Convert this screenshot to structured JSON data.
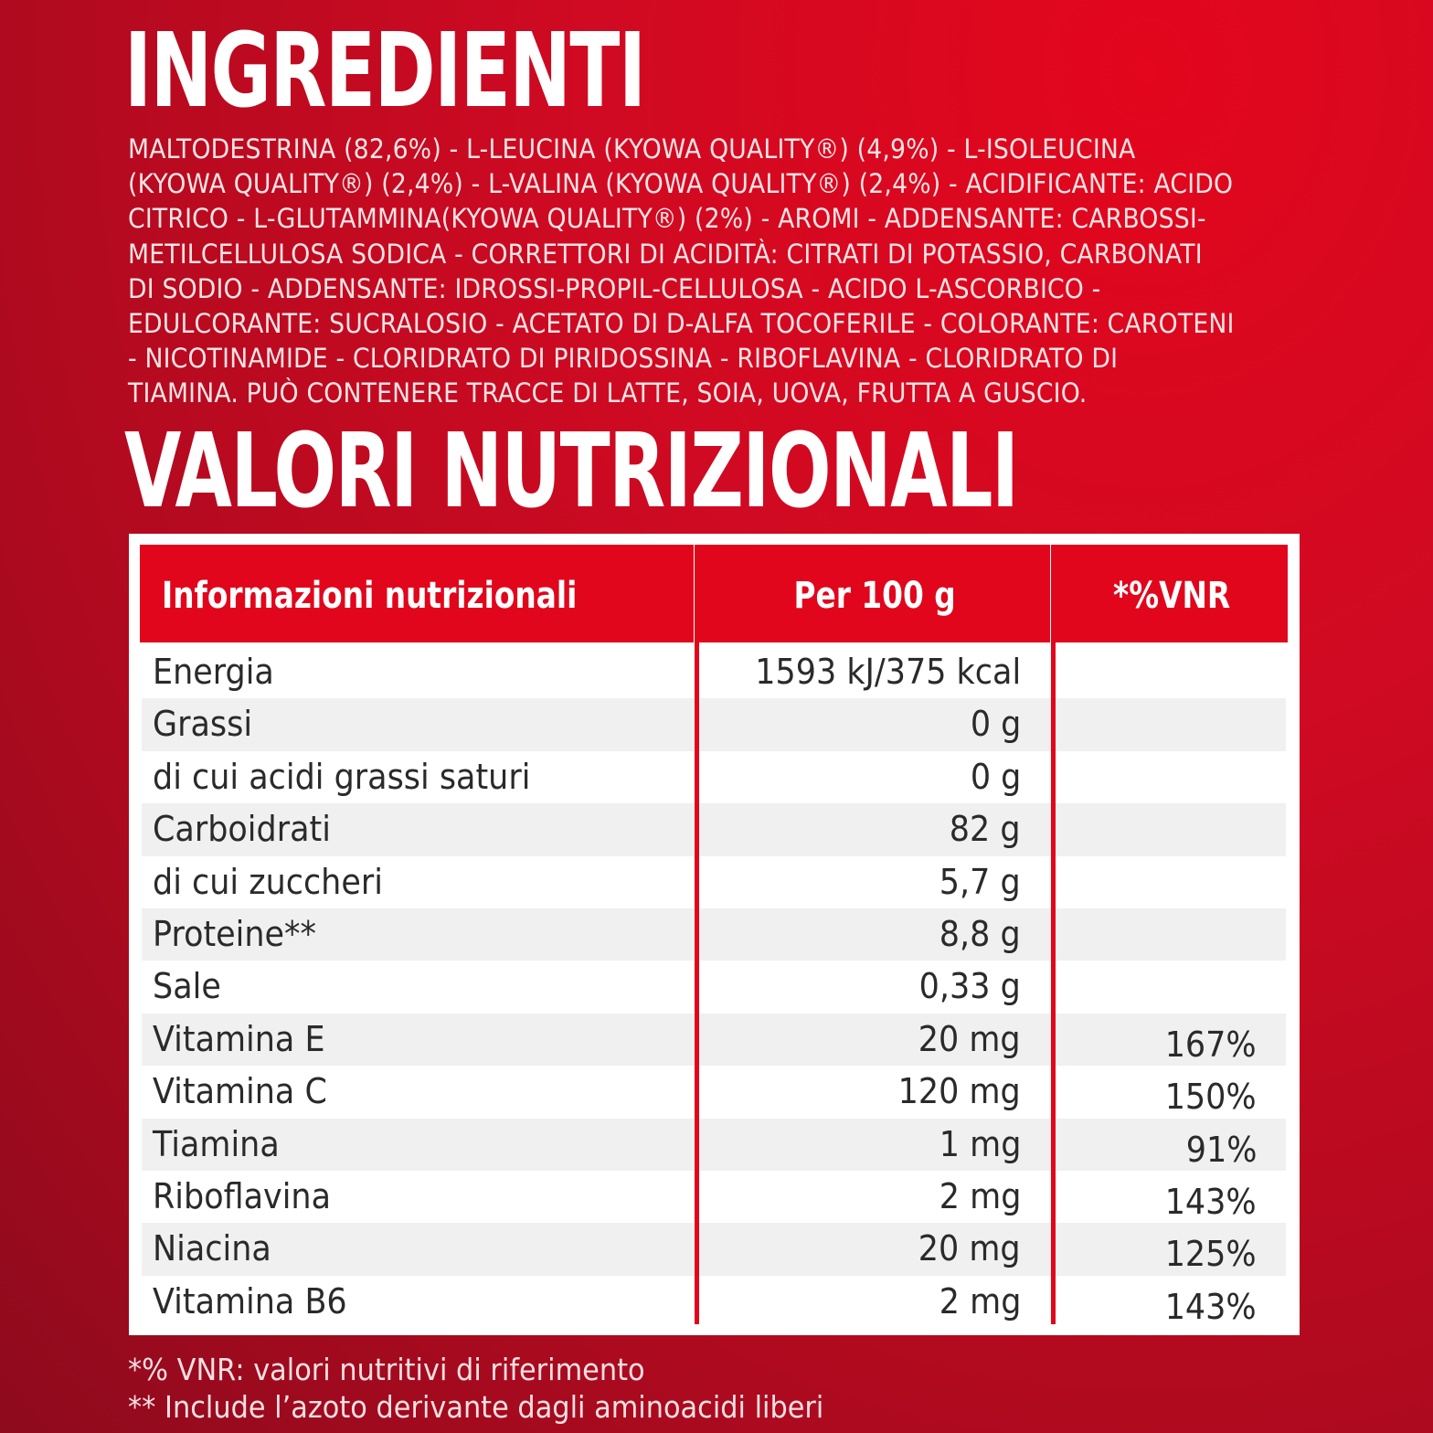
{
  "ingredients_title": "INGREDIENTI",
  "ingredients_lines": [
    "MALTODESTRINA (82,6%) - L-LEUCINA (KYOWA QUALITY®) (4,9%) - L-ISOLEUCINA",
    "(KYOWA QUALITY®) (2,4%) - L-VALINA (KYOWA QUALITY®) (2,4%) - ACIDIFICANTE: ACIDO",
    "CITRICO - L-GLUTAMMINA(KYOWA QUALITY®) (2%) - AROMI - ADDENSANTE: CARBOSSI-",
    "METILCELLULOSA SODICA - CORRETTORI DI ACIDITÀ: CITRATI DI POTASSIO, CARBONATI",
    "DI SODIO - ADDENSANTE: IDROSSI-PROPIL-CELLULOSA - ACIDO L-ASCORBICO -",
    "EDULCORANTE: SUCRALOSIO - ACETATO DI D-ALFA TOCOFERILE - COLORANTE: CAROTENI",
    "- NICOTINAMIDE - CLORIDRATO DI PIRIDOSSINA - RIBOFLAVINA - CLORIDRATO DI",
    "TIAMINA. PUÒ CONTENERE TRACCE DI LATTE, SOIA, UOVA, FRUTTA A GUSCIO."
  ],
  "nutrition_title": "VALORI NUTRIZIONALI",
  "table": {
    "headers": [
      "Informazioni nutrizionali",
      "Per 100 g",
      "*%VNR"
    ],
    "rows": [
      {
        "name": "Energia",
        "value": "1593 kJ/375 kcal",
        "vnr": ""
      },
      {
        "name": "Grassi",
        "value": "0 g",
        "vnr": ""
      },
      {
        "name": "di cui acidi grassi saturi",
        "value": "0 g",
        "vnr": ""
      },
      {
        "name": "Carboidrati",
        "value": "82 g",
        "vnr": ""
      },
      {
        "name": "di cui zuccheri",
        "value": "5,7 g",
        "vnr": ""
      },
      {
        "name": "Proteine**",
        "value": "8,8 g",
        "vnr": ""
      },
      {
        "name": "Sale",
        "value": "0,33 g",
        "vnr": ""
      },
      {
        "name": "Vitamina E",
        "value": "20 mg",
        "vnr": "167%"
      },
      {
        "name": "Vitamina C",
        "value": "120 mg",
        "vnr": "150%"
      },
      {
        "name": "Tiamina",
        "value": "1 mg",
        "vnr": "91%"
      },
      {
        "name": "Riboflavina",
        "value": "2 mg",
        "vnr": "143%"
      },
      {
        "name": "Niacina",
        "value": "20 mg",
        "vnr": "125%"
      },
      {
        "name": "Vitamina B6",
        "value": "2 mg",
        "vnr": "143%"
      }
    ]
  },
  "footnotes": [
    "*% VNR: valori nutritivi di riferimento",
    "** Include l’azoto derivante dagli aminoacidi liberi"
  ],
  "colors": {
    "background": "#cf0a22",
    "header_red": "#e1061c",
    "row_alt": "#f0f0f0",
    "text_dark": "#2a2a2a"
  }
}
